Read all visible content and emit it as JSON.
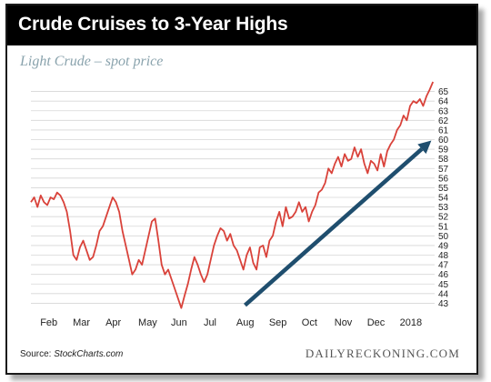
{
  "header": {
    "title": "Crude Cruises to 3-Year Highs",
    "subtitle": "Light Crude – spot price"
  },
  "footer": {
    "source_prefix": "Source: ",
    "source_name": "StockCharts.com",
    "brand": "DAILYRECKONING.COM"
  },
  "colors": {
    "price_line": "#d9423a",
    "trend_arrow": "#1f4e6e",
    "grid": "#d6d6d6"
  },
  "chart_data": {
    "type": "line",
    "title": "Crude Cruises to 3-Year Highs",
    "subtitle": "Light Crude – spot price",
    "xlabel": "",
    "ylabel": "",
    "ylim": [
      42,
      66
    ],
    "yticks": [
      43,
      44,
      45,
      46,
      47,
      48,
      49,
      50,
      51,
      52,
      53,
      54,
      55,
      56,
      57,
      58,
      59,
      60,
      61,
      62,
      63,
      64,
      65
    ],
    "y_axis_side": "right",
    "grid": "horizontal",
    "xlim": [
      -0.2,
      12.15
    ],
    "xticks": [
      {
        "label": "Feb",
        "x": 0
      },
      {
        "label": "Mar",
        "x": 1
      },
      {
        "label": "Apr",
        "x": 2
      },
      {
        "label": "May",
        "x": 3
      },
      {
        "label": "Jun",
        "x": 4
      },
      {
        "label": "Jul",
        "x": 5
      },
      {
        "label": "Aug",
        "x": 6
      },
      {
        "label": "Sep",
        "x": 7
      },
      {
        "label": "Oct",
        "x": 8
      },
      {
        "label": "Nov",
        "x": 9
      },
      {
        "label": "Dec",
        "x": 10
      },
      {
        "label": "2018",
        "x": 11
      }
    ],
    "series": [
      {
        "x": [
          -0.2,
          -0.1,
          0.0,
          0.1,
          0.2,
          0.3,
          0.4,
          0.5,
          0.6,
          0.7,
          0.8,
          0.9,
          1.0,
          1.1,
          1.2,
          1.3,
          1.4,
          1.5,
          1.6,
          1.7,
          1.8,
          1.9,
          2.0,
          2.1,
          2.2,
          2.3,
          2.4,
          2.5,
          2.6,
          2.7,
          2.8,
          2.9,
          3.0,
          3.1,
          3.2,
          3.3,
          3.4,
          3.5,
          3.6,
          3.7,
          3.8,
          3.9,
          4.0,
          4.1,
          4.2,
          4.3,
          4.4,
          4.5,
          4.6,
          4.7,
          4.8,
          4.9,
          5.0,
          5.1,
          5.2,
          5.3,
          5.4,
          5.5,
          5.6,
          5.7,
          5.8,
          5.9,
          6.0,
          6.1,
          6.2,
          6.3,
          6.4,
          6.5,
          6.6,
          6.7,
          6.8,
          6.9,
          7.0,
          7.1,
          7.2,
          7.3,
          7.4,
          7.5,
          7.6,
          7.7,
          7.8,
          7.9,
          8.0,
          8.1,
          8.2,
          8.3,
          8.4,
          8.5,
          8.6,
          8.7,
          8.8,
          8.9,
          9.0,
          9.1,
          9.2,
          9.3,
          9.4,
          9.5,
          9.6,
          9.7,
          9.8,
          9.9,
          10.0,
          10.1,
          10.2,
          10.3,
          10.4,
          10.5,
          10.6,
          10.7,
          10.8,
          10.9,
          11.0,
          11.1,
          11.2,
          11.3,
          11.4,
          11.5,
          11.6,
          11.7,
          11.8,
          11.9,
          12.0,
          12.1
        ],
        "values": [
          53.5,
          54.0,
          53.0,
          54.2,
          53.5,
          53.2,
          54.0,
          53.8,
          54.5,
          54.2,
          53.5,
          52.5,
          50.5,
          48.0,
          47.5,
          48.8,
          49.5,
          48.5,
          47.5,
          47.8,
          49.0,
          50.5,
          51.0,
          52.0,
          53.0,
          54.0,
          53.5,
          52.5,
          50.5,
          49.0,
          47.5,
          46.0,
          46.5,
          47.5,
          47.0,
          48.5,
          50.0,
          51.5,
          51.8,
          49.5,
          47.0,
          46.0,
          46.5,
          45.5,
          44.5,
          43.5,
          42.5,
          43.8,
          45.0,
          46.5,
          47.8,
          47.0,
          46.0,
          45.2,
          46.0,
          47.5,
          49.0,
          50.0,
          50.8,
          50.5,
          49.5,
          50.2,
          49.0,
          48.5,
          47.5,
          46.5,
          48.0,
          48.8,
          47.2,
          46.5,
          48.8,
          49.0,
          47.8,
          49.5,
          50.0,
          51.5,
          52.5,
          51.0,
          53.0,
          51.8,
          52.0,
          52.5,
          53.5,
          52.5,
          53.0,
          51.5,
          52.5,
          53.2,
          54.5,
          54.8,
          55.5,
          57.0,
          56.5,
          57.5,
          58.2,
          57.2,
          58.5,
          57.8,
          58.0,
          59.2,
          58.2,
          59.0,
          57.5,
          56.5,
          57.8,
          57.5,
          56.8,
          58.5,
          57.2,
          58.8,
          59.5,
          60.0,
          61.0,
          61.5,
          62.5,
          62.0,
          63.5,
          64.0,
          63.8,
          64.2,
          63.5,
          64.5,
          65.2,
          66.0
        ]
      }
    ],
    "annotations": [
      {
        "type": "arrow",
        "x1": 6.35,
        "y1": 42.8,
        "x2": 12.05,
        "y2": 59.9
      }
    ]
  }
}
